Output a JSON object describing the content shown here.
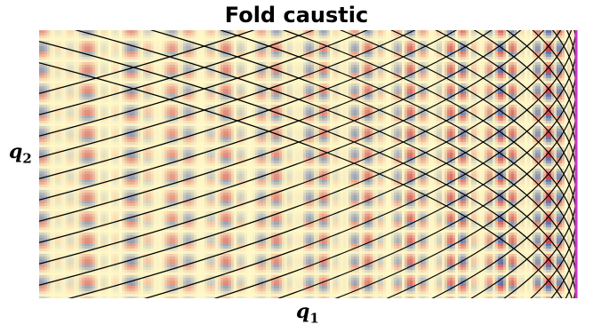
{
  "title": "Fold caustic",
  "xlabel": {
    "symbol": "q",
    "subscript": "1"
  },
  "ylabel": {
    "symbol": "q",
    "subscript": "2"
  },
  "colors": {
    "cold": "#3b4ea0",
    "mid": "#fff8c8",
    "hot": "#c8303a",
    "rays": "#000000",
    "caustic": "#cc33cc"
  }
}
